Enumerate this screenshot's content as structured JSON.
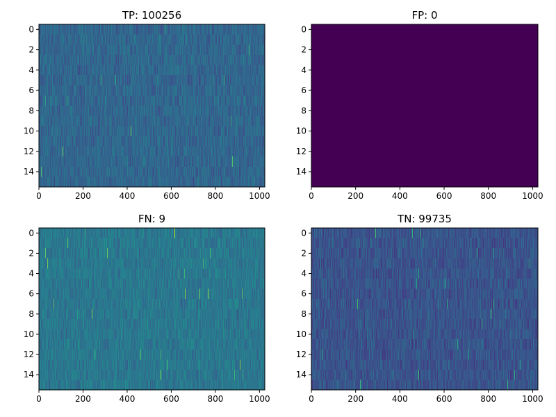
{
  "chart_data": [
    {
      "type": "heatmap",
      "title": "TP: 100256",
      "xlabel": "",
      "ylabel": "",
      "x_ticks": [
        "0",
        "200",
        "400",
        "600",
        "800",
        "1000"
      ],
      "y_ticks": [
        "0",
        "2",
        "4",
        "6",
        "8",
        "10",
        "12",
        "14"
      ],
      "xlim": [
        0,
        1024
      ],
      "ylim": [
        15.5,
        -0.5
      ],
      "rows": 16,
      "cols": 1024,
      "colormap": "viridis",
      "value_mean": 0.33,
      "value_spread": 0.08,
      "grid": false
    },
    {
      "type": "heatmap",
      "title": "FP: 0",
      "xlabel": "",
      "ylabel": "",
      "x_ticks": [
        "0",
        "200",
        "400",
        "600",
        "800",
        "1000"
      ],
      "y_ticks": [
        "0",
        "2",
        "4",
        "6",
        "8",
        "10",
        "12",
        "14"
      ],
      "xlim": [
        0,
        1024
      ],
      "ylim": [
        15.5,
        -0.5
      ],
      "rows": 16,
      "cols": 1024,
      "colormap": "viridis",
      "value_mean": 0.0,
      "value_spread": 0.0,
      "grid": false
    },
    {
      "type": "heatmap",
      "title": "FN: 9",
      "xlabel": "",
      "ylabel": "",
      "x_ticks": [
        "0",
        "200",
        "400",
        "600",
        "800",
        "1000"
      ],
      "y_ticks": [
        "0",
        "2",
        "4",
        "6",
        "8",
        "10",
        "12",
        "14"
      ],
      "xlim": [
        0,
        1024
      ],
      "ylim": [
        15.5,
        -0.5
      ],
      "rows": 16,
      "cols": 1024,
      "colormap": "viridis",
      "value_mean": 0.4,
      "value_spread": 0.08,
      "grid": false
    },
    {
      "type": "heatmap",
      "title": "TN: 99735",
      "xlabel": "",
      "ylabel": "",
      "x_ticks": [
        "0",
        "200",
        "400",
        "600",
        "800",
        "1000"
      ],
      "y_ticks": [
        "0",
        "2",
        "4",
        "6",
        "8",
        "10",
        "12",
        "14"
      ],
      "xlim": [
        0,
        1024
      ],
      "ylim": [
        15.5,
        -0.5
      ],
      "rows": 16,
      "cols": 1024,
      "colormap": "viridis",
      "value_mean": 0.26,
      "value_spread": 0.08,
      "grid": false
    }
  ],
  "colors": {
    "viridis_stops": [
      "#440154",
      "#482878",
      "#3e4989",
      "#31688e",
      "#26828e",
      "#1f9e89",
      "#35b779",
      "#6ece58",
      "#b5de2b",
      "#fde725"
    ],
    "axis": "#000000",
    "background": "#ffffff"
  }
}
